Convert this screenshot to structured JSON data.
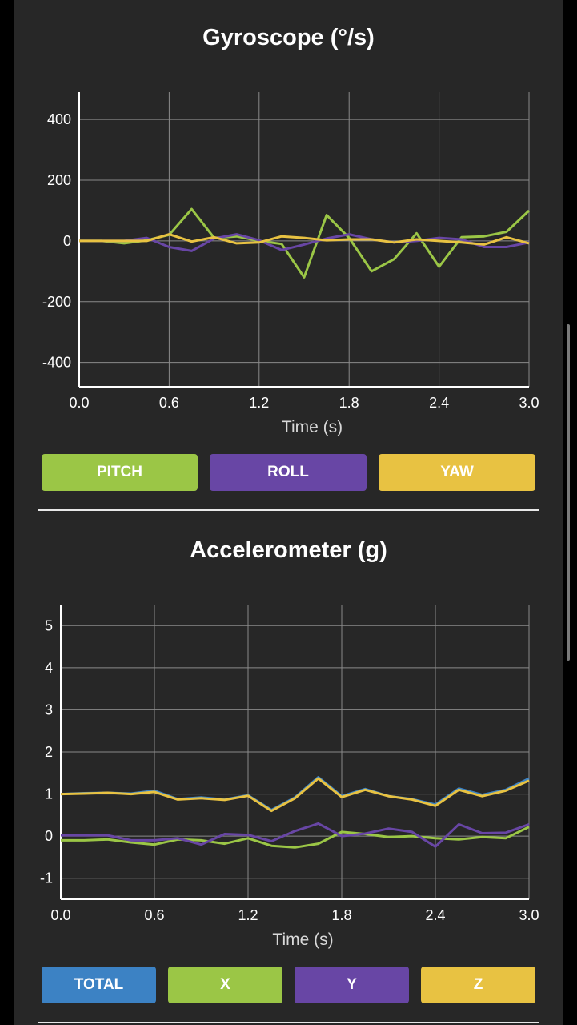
{
  "charts": [
    {
      "title": "Gyroscope (°/s)",
      "xlabel": "Time (s)",
      "buttons": [
        {
          "label": "PITCH",
          "color": "#9bc646"
        },
        {
          "label": "ROLL",
          "color": "#6846a5"
        },
        {
          "label": "YAW",
          "color": "#e8c242"
        }
      ]
    },
    {
      "title": "Accelerometer (g)",
      "xlabel": "Time (s)",
      "buttons": [
        {
          "label": "TOTAL",
          "color": "#3c82c4"
        },
        {
          "label": "X",
          "color": "#9bc646"
        },
        {
          "label": "Y",
          "color": "#6846a5"
        },
        {
          "label": "Z",
          "color": "#e8c242"
        }
      ]
    }
  ],
  "chart_data": [
    {
      "type": "line",
      "title": "Gyroscope (°/s)",
      "xlabel": "Time (s)",
      "ylabel": "",
      "xlim": [
        0.0,
        3.0
      ],
      "ylim": [
        -480,
        490
      ],
      "xticks": [
        "0.0",
        "0.6",
        "1.2",
        "1.8",
        "2.4",
        "3.0"
      ],
      "yticks": [
        400,
        200,
        0,
        -200,
        -400
      ],
      "grid": true,
      "x": [
        0.0,
        0.15,
        0.3,
        0.45,
        0.6,
        0.75,
        0.9,
        1.05,
        1.2,
        1.35,
        1.5,
        1.65,
        1.8,
        1.95,
        2.1,
        2.25,
        2.4,
        2.55,
        2.7,
        2.85,
        3.0
      ],
      "series": [
        {
          "color": "#9bc646",
          "values": [
            0,
            0,
            -8,
            2,
            20,
            105,
            10,
            15,
            0,
            -10,
            -120,
            85,
            10,
            -100,
            -60,
            25,
            -85,
            12,
            15,
            30,
            100
          ]
        },
        {
          "color": "#6846a5",
          "values": [
            0,
            0,
            0,
            10,
            -20,
            -33,
            8,
            22,
            2,
            -30,
            -12,
            8,
            22,
            5,
            -5,
            0,
            10,
            5,
            -20,
            -20,
            -5
          ]
        },
        {
          "color": "#e8c242",
          "values": [
            0,
            0,
            0,
            0,
            22,
            -2,
            12,
            -8,
            -5,
            15,
            10,
            2,
            5,
            5,
            -5,
            5,
            0,
            -5,
            -12,
            12,
            -8
          ]
        }
      ]
    },
    {
      "type": "line",
      "title": "Accelerometer (g)",
      "xlabel": "Time (s)",
      "ylabel": "",
      "xlim": [
        0.0,
        3.0
      ],
      "ylim": [
        -1.5,
        5.5
      ],
      "xticks": [
        "0.0",
        "0.6",
        "1.2",
        "1.8",
        "2.4",
        "3.0"
      ],
      "yticks": [
        5,
        4,
        3,
        2,
        1,
        0,
        -1
      ],
      "grid": true,
      "x": [
        0.0,
        0.15,
        0.3,
        0.45,
        0.6,
        0.75,
        0.9,
        1.05,
        1.2,
        1.35,
        1.5,
        1.65,
        1.8,
        1.95,
        2.1,
        2.25,
        2.4,
        2.55,
        2.7,
        2.85,
        3.0
      ],
      "series": [
        {
          "color": "#3c82c4",
          "values": [
            1.0,
            1.02,
            1.03,
            1.01,
            1.08,
            0.88,
            0.92,
            0.87,
            0.97,
            0.62,
            0.92,
            1.4,
            0.95,
            1.12,
            0.95,
            0.88,
            0.75,
            1.13,
            0.98,
            1.1,
            1.37
          ]
        },
        {
          "color": "#9bc646",
          "values": [
            -0.1,
            -0.1,
            -0.08,
            -0.15,
            -0.2,
            -0.08,
            -0.1,
            -0.18,
            -0.05,
            -0.23,
            -0.27,
            -0.18,
            0.1,
            0.05,
            -0.02,
            0.0,
            -0.05,
            -0.08,
            -0.02,
            -0.05,
            0.22
          ]
        },
        {
          "color": "#6846a5",
          "values": [
            0.02,
            0.02,
            0.02,
            -0.1,
            -0.1,
            -0.05,
            -0.2,
            0.05,
            0.03,
            -0.12,
            0.12,
            0.3,
            0.0,
            0.06,
            0.18,
            0.1,
            -0.25,
            0.28,
            0.07,
            0.08,
            0.28
          ]
        },
        {
          "color": "#e8c242",
          "values": [
            1.0,
            1.01,
            1.03,
            1.0,
            1.05,
            0.87,
            0.9,
            0.86,
            0.96,
            0.6,
            0.9,
            1.37,
            0.93,
            1.1,
            0.95,
            0.87,
            0.72,
            1.1,
            0.95,
            1.08,
            1.32
          ]
        }
      ]
    }
  ]
}
